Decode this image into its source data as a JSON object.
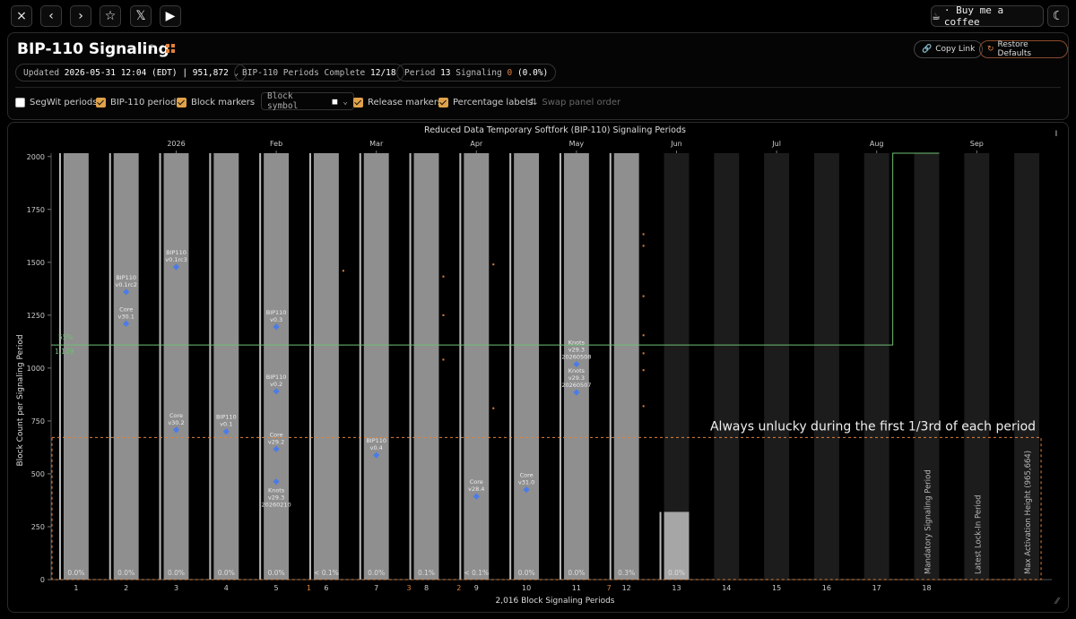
{
  "topbar": {
    "close_icon": "×",
    "back_icon": "‹",
    "forward_icon": "›",
    "star_icon": "☆",
    "x_icon": "𝕏",
    "youtube_icon": "▶",
    "coffee_label": "· Buy me a coffee",
    "theme_icon": "☾"
  },
  "header": {
    "title": "BIP-110 Signaling",
    "help_icon": "?",
    "copy_link": "Copy Link",
    "restore_defaults": "Restore Defaults"
  },
  "status": {
    "updated_label": "Updated",
    "updated_value": "2026-05-31 12:04 (EDT) | 951,872",
    "periods_label": "BIP-110 Periods Complete",
    "periods_value": "12/18",
    "period_label": "Period",
    "period_num": "13",
    "signaling_label": "Signaling",
    "signaling_num": "0",
    "signaling_pct": "(0.0%)"
  },
  "options": {
    "segwit": "SegWit periods",
    "bip110": "BIP-110 periods",
    "block_markers": "Block markers",
    "block_symbol": "Block symbol",
    "release_markers": "Release markers",
    "percentage_labels": "Percentage labels",
    "swap": "Swap panel order"
  },
  "chart_data": {
    "type": "bar",
    "title": "Reduced Data Temporary Softfork (BIP-110) Signaling Periods",
    "xlabel": "2,016 Block Signaling Periods",
    "ylabel": "Block Count per Signaling Period",
    "ylim": [
      0,
      2016
    ],
    "yticks": [
      0,
      250,
      500,
      750,
      1000,
      1250,
      1500,
      1750,
      2000
    ],
    "categories": [
      "1",
      "2",
      "3",
      "4",
      "5",
      "6",
      "7",
      "8",
      "9",
      "10",
      "11",
      "12",
      "13",
      "14",
      "15",
      "16",
      "17",
      "18"
    ],
    "period_blocks": [
      2016,
      2016,
      2016,
      2016,
      2016,
      2016,
      2016,
      2016,
      2016,
      2016,
      2016,
      2016,
      320,
      2016,
      2016,
      2016,
      2016,
      2016
    ],
    "complete_periods": 12,
    "pct_labels": [
      "0.0%",
      "0.0%",
      "0.0%",
      "0.0%",
      "0.0%",
      "< 0.1%",
      "0.0%",
      "0.1%",
      "< 0.1%",
      "0.0%",
      "0.0%",
      "0.3%",
      "0.0%"
    ],
    "signal_counts": [
      "",
      "",
      "",
      "",
      "",
      "1",
      "",
      "3",
      "2",
      "",
      "",
      "7",
      "",
      ""
    ],
    "month_labels": [
      {
        "label": "2026",
        "at": 2.0
      },
      {
        "label": "Feb",
        "at": 3.0
      },
      {
        "label": "Mar",
        "at": 4.0
      },
      {
        "label": "Apr",
        "at": 5.0
      },
      {
        "label": "May",
        "at": 6.0
      },
      {
        "label": "Jun",
        "at": 7.0
      },
      {
        "label": "Jul",
        "at": 8.0
      },
      {
        "label": "Aug",
        "at": 9.0
      },
      {
        "label": "Sep",
        "at": 10.0
      }
    ],
    "threshold_pct_label": "55%",
    "threshold_value": 1109,
    "threshold_label": "1,109",
    "threshold_step_period": 17,
    "threshold_step_value": 2016,
    "unlucky_value": 672,
    "unlucky_label": "Always unlucky during the first 1/3rd of each period",
    "release_markers": [
      {
        "period": 2,
        "y": 1360,
        "lines": [
          "BIP110",
          "v0.1rc2"
        ]
      },
      {
        "period": 2,
        "y": 1210,
        "lines": [
          "Core",
          "v30.1"
        ]
      },
      {
        "period": 3,
        "y": 1478,
        "lines": [
          "BIP110",
          "v0.1rc3"
        ]
      },
      {
        "period": 3,
        "y": 708,
        "lines": [
          "Core",
          "v30.2"
        ]
      },
      {
        "period": 4,
        "y": 700,
        "lines": [
          "BIP110",
          "v0.1"
        ]
      },
      {
        "period": 5,
        "y": 1195,
        "lines": [
          "BIP110",
          "v0.3"
        ]
      },
      {
        "period": 5,
        "y": 890,
        "lines": [
          "BIP110",
          "v0.2"
        ]
      },
      {
        "period": 5,
        "y": 617,
        "lines": [
          "Core",
          "v29.2"
        ]
      },
      {
        "period": 5,
        "y": 463,
        "lines": [
          "Knots",
          "v29.3",
          "20260210"
        ]
      },
      {
        "period": 7,
        "y": 588,
        "lines": [
          "BIP110",
          "v0.4"
        ]
      },
      {
        "period": 9,
        "y": 393,
        "lines": [
          "Core",
          "v28.4"
        ]
      },
      {
        "period": 10,
        "y": 425,
        "lines": [
          "Core",
          "v31.0"
        ]
      },
      {
        "period": 11,
        "y": 1018,
        "lines": [
          "Knots",
          "v29.3",
          "20260508"
        ]
      },
      {
        "period": 11,
        "y": 885,
        "lines": [
          "Knots",
          "v29.3",
          "20260507"
        ]
      }
    ],
    "block_markers": [
      {
        "period": 6,
        "y": 1460
      },
      {
        "period": 8,
        "y": 1433
      },
      {
        "period": 8,
        "y": 1250
      },
      {
        "period": 8,
        "y": 1040
      },
      {
        "period": 9,
        "y": 1490
      },
      {
        "period": 9,
        "y": 810
      },
      {
        "period": 12,
        "y": 1633
      },
      {
        "period": 12,
        "y": 1578
      },
      {
        "period": 12,
        "y": 1340
      },
      {
        "period": 12,
        "y": 1155
      },
      {
        "period": 12,
        "y": 1070
      },
      {
        "period": 12,
        "y": 990
      },
      {
        "period": 12,
        "y": 820
      }
    ],
    "phase_labels": [
      {
        "period": 18,
        "label": "Mandatory Signaling Period"
      },
      {
        "period": 19,
        "label": "Latest Lock-In Period"
      },
      {
        "period": 20,
        "label": "Max Activation Height (965,664)"
      }
    ],
    "colors": {
      "complete_bar": "#8f8f8f",
      "current_bar": "#a6a6a6",
      "future_bar": "#1c1c1c",
      "threshold": "#6fbf73",
      "accent": "#e0823c",
      "release_marker": "#4a7be8"
    }
  }
}
